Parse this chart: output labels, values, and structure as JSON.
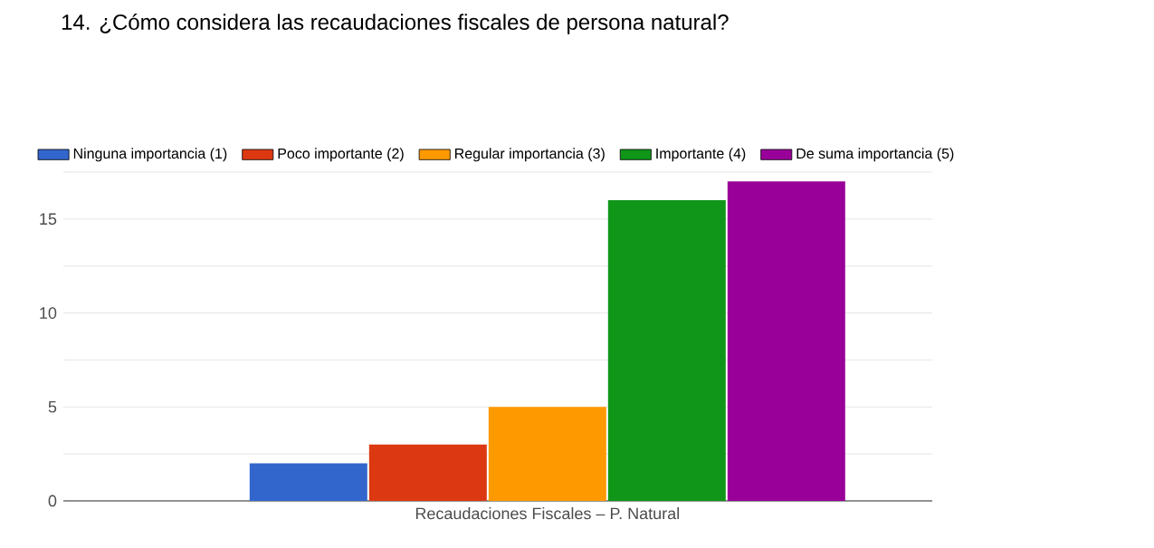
{
  "chart_data": {
    "type": "bar",
    "title": "14. ¿Cómo considera las recaudaciones fiscales de persona natural?",
    "categories": [
      "Recaudaciones Fiscales – P. Natural"
    ],
    "series": [
      {
        "name": "Ninguna importancia (1)",
        "color": "#3366cc",
        "values": [
          2
        ]
      },
      {
        "name": "Poco importante (2)",
        "color": "#dc3912",
        "values": [
          3
        ]
      },
      {
        "name": "Regular importancia (3)",
        "color": "#ff9900",
        "values": [
          5
        ]
      },
      {
        "name": "Importante (4)",
        "color": "#109618",
        "values": [
          16
        ]
      },
      {
        "name": "De suma importancia (5)",
        "color": "#990099",
        "values": [
          17
        ]
      }
    ],
    "ylim": [
      0,
      17.5
    ],
    "yticks": [
      0,
      {
        "value": 2.5,
        "label": null
      },
      5,
      {
        "value": 7.5,
        "label": null
      },
      10,
      {
        "value": 12.5,
        "label": null
      },
      15,
      {
        "value": 17.5,
        "label": null
      }
    ],
    "grid": "y",
    "legend": "top"
  }
}
